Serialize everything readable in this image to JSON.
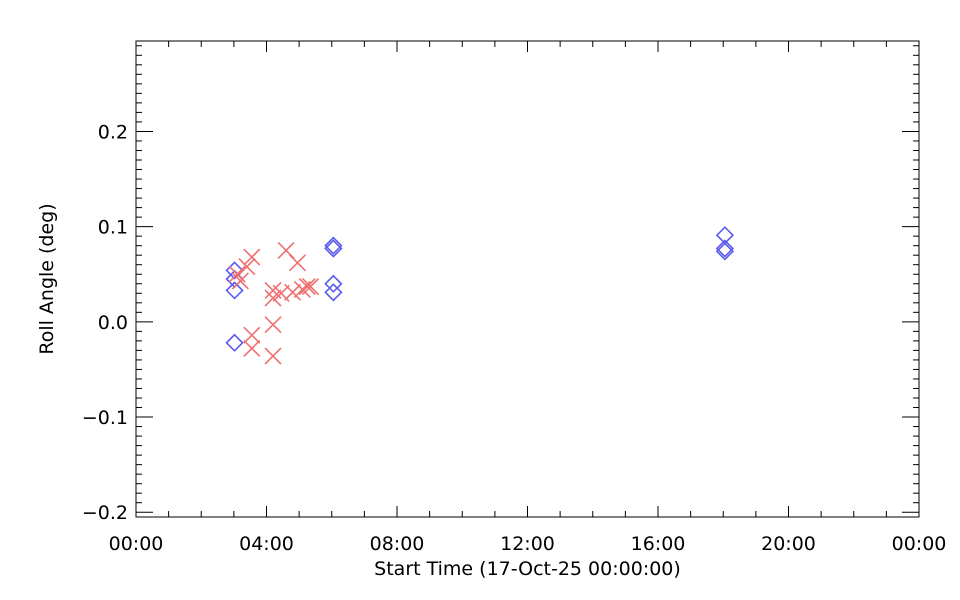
{
  "chart_data": {
    "type": "scatter",
    "title": "",
    "xlabel": "Start Time (17-Oct-25 00:00:00)",
    "ylabel": "Roll Angle (deg)",
    "x_units": "hours after 17-Oct-25 00:00:00",
    "xlim": [
      0,
      24
    ],
    "ylim": [
      -0.205,
      0.295
    ],
    "x_ticks": [
      0,
      4,
      8,
      12,
      16,
      20,
      24
    ],
    "x_tick_labels": [
      "00:00",
      "04:00",
      "08:00",
      "12:00",
      "16:00",
      "20:00",
      "00:00"
    ],
    "y_ticks": [
      -0.2,
      -0.1,
      0.0,
      0.1,
      0.2
    ],
    "y_tick_labels": [
      "−0.2",
      "−0.1",
      "0.0",
      "0.1",
      "0.2"
    ],
    "grid": false,
    "legend": "none",
    "series": [
      {
        "marker": "diamond",
        "color": "#5a5aee",
        "points": [
          [
            3.02,
            0.054
          ],
          [
            3.02,
            0.045
          ],
          [
            3.02,
            0.033
          ],
          [
            3.02,
            -0.022
          ],
          [
            6.05,
            0.08
          ],
          [
            6.05,
            0.077
          ],
          [
            6.05,
            0.04
          ],
          [
            6.05,
            0.031
          ],
          [
            18.05,
            0.091
          ],
          [
            18.05,
            0.077
          ],
          [
            18.05,
            0.074
          ]
        ]
      },
      {
        "marker": "x",
        "color": "#f07070",
        "points": [
          [
            3.1,
            0.05
          ],
          [
            3.2,
            0.043
          ],
          [
            3.4,
            0.058
          ],
          [
            3.55,
            0.068
          ],
          [
            3.55,
            -0.014
          ],
          [
            3.55,
            -0.028
          ],
          [
            4.2,
            0.033
          ],
          [
            4.2,
            0.025
          ],
          [
            4.2,
            -0.003
          ],
          [
            4.2,
            -0.036
          ],
          [
            4.45,
            0.03
          ],
          [
            4.6,
            0.075
          ],
          [
            4.8,
            0.031
          ],
          [
            4.95,
            0.062
          ],
          [
            5.1,
            0.034
          ],
          [
            5.25,
            0.037
          ],
          [
            5.35,
            0.037
          ]
        ]
      }
    ]
  }
}
